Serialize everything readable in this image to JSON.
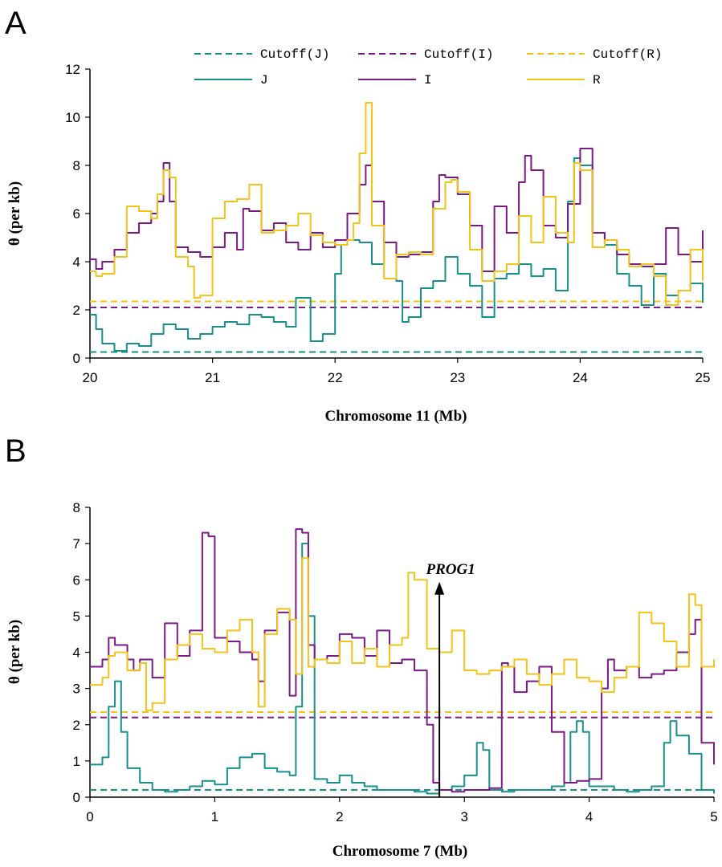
{
  "colors": {
    "J": "#18908a",
    "I": "#7b1a86",
    "R": "#f2c318"
  },
  "chart_data": [
    {
      "type": "line",
      "panel": "A",
      "xlabel": "Chromosome 11 (Mb)",
      "ylabel": "θ (per kb)",
      "xlim": [
        20,
        25
      ],
      "ylim": [
        0,
        12
      ],
      "xticks": [
        20,
        21,
        22,
        23,
        24,
        25
      ],
      "yticks": [
        0,
        2,
        4,
        6,
        8,
        10,
        12
      ],
      "legend": [
        {
          "name": "Cutoff(J)",
          "series": "J",
          "dashed": true
        },
        {
          "name": "Cutoff(I)",
          "series": "I",
          "dashed": true
        },
        {
          "name": "Cutoff(R)",
          "series": "R",
          "dashed": true
        },
        {
          "name": "J",
          "series": "J",
          "dashed": false
        },
        {
          "name": "I",
          "series": "I",
          "dashed": false
        },
        {
          "name": "R",
          "series": "R",
          "dashed": false
        }
      ],
      "cutoffs": {
        "J": 0.25,
        "I": 2.1,
        "R": 2.35
      },
      "series": [
        {
          "key": "J",
          "x": [
            20,
            20.05,
            20.1,
            20.2,
            20.3,
            20.4,
            20.5,
            20.6,
            20.7,
            20.8,
            20.9,
            21,
            21.1,
            21.2,
            21.3,
            21.4,
            21.5,
            21.6,
            21.68,
            21.72,
            21.8,
            21.9,
            22,
            22.05,
            22.1,
            22.2,
            22.3,
            22.4,
            22.5,
            22.55,
            22.6,
            22.7,
            22.8,
            22.9,
            23,
            23.1,
            23.2,
            23.3,
            23.4,
            23.5,
            23.6,
            23.7,
            23.8,
            23.9,
            23.95,
            24,
            24.1,
            24.2,
            24.3,
            24.4,
            24.5,
            24.6,
            24.7,
            24.8,
            24.9,
            25
          ],
          "y": [
            1.8,
            1.2,
            0.6,
            0.3,
            0.6,
            0.5,
            1,
            1.4,
            1.2,
            0.8,
            1,
            1.3,
            1.5,
            1.4,
            1.8,
            1.7,
            1.5,
            1.3,
            2.5,
            2.5,
            0.7,
            1,
            3.5,
            4.7,
            4.9,
            4.8,
            3.9,
            4.8,
            3.2,
            1.5,
            1.7,
            2.9,
            3.2,
            4.2,
            3.5,
            3,
            1.7,
            3.3,
            3.5,
            3.9,
            3.4,
            3.7,
            2.8,
            6.5,
            8.3,
            8,
            5.2,
            4.7,
            3.5,
            3,
            2.2,
            3.5,
            2.6,
            2.8,
            3.1,
            2.3
          ]
        },
        {
          "key": "I",
          "x": [
            20,
            20.05,
            20.1,
            20.2,
            20.3,
            20.4,
            20.5,
            20.55,
            20.6,
            20.65,
            20.7,
            20.8,
            20.9,
            21,
            21.1,
            21.2,
            21.25,
            21.3,
            21.4,
            21.5,
            21.6,
            21.7,
            21.8,
            21.9,
            22,
            22.1,
            22.2,
            22.25,
            22.3,
            22.4,
            22.5,
            22.6,
            22.7,
            22.8,
            22.85,
            22.9,
            23,
            23.1,
            23.2,
            23.3,
            23.4,
            23.5,
            23.55,
            23.6,
            23.7,
            23.8,
            23.9,
            24,
            24.1,
            24.2,
            24.3,
            24.4,
            24.5,
            24.6,
            24.7,
            24.8,
            24.9,
            25
          ],
          "y": [
            4.1,
            3.7,
            4,
            4.5,
            5.2,
            5.6,
            6,
            6.5,
            8.1,
            6.5,
            4.6,
            4.4,
            4.2,
            4.6,
            5.2,
            4.5,
            6.2,
            6.1,
            5.3,
            5.6,
            4.8,
            4.5,
            5.2,
            4.6,
            4.9,
            6,
            7.2,
            8,
            6.5,
            4.8,
            4.2,
            4.3,
            4.4,
            6.5,
            7.6,
            7.5,
            6.8,
            5.5,
            3.6,
            6.3,
            5.2,
            7.3,
            8.4,
            7.8,
            5.5,
            5,
            6.4,
            8.7,
            5.2,
            4.9,
            4.3,
            3.9,
            3.8,
            3.9,
            5.4,
            4.3,
            4,
            5.3
          ]
        },
        {
          "key": "R",
          "x": [
            20,
            20.05,
            20.1,
            20.2,
            20.3,
            20.4,
            20.5,
            20.55,
            20.6,
            20.65,
            20.7,
            20.8,
            20.85,
            20.9,
            21,
            21.1,
            21.2,
            21.3,
            21.4,
            21.5,
            21.6,
            21.7,
            21.8,
            21.9,
            22,
            22.1,
            22.15,
            22.2,
            22.25,
            22.3,
            22.4,
            22.5,
            22.6,
            22.7,
            22.8,
            22.9,
            22.95,
            23,
            23.1,
            23.2,
            23.3,
            23.4,
            23.5,
            23.6,
            23.7,
            23.8,
            23.9,
            23.95,
            24,
            24.1,
            24.2,
            24.3,
            24.4,
            24.5,
            24.6,
            24.7,
            24.8,
            24.9,
            25
          ],
          "y": [
            3.6,
            3.4,
            3.5,
            4.2,
            6.3,
            6.1,
            5.8,
            6.8,
            7.8,
            7.5,
            4.2,
            3.8,
            2.5,
            2.6,
            5.8,
            6.5,
            6.6,
            7.2,
            5.2,
            5.3,
            5.5,
            6,
            5.1,
            4.8,
            4.7,
            4.9,
            5.6,
            8.5,
            10.6,
            5.5,
            3.3,
            4.3,
            4.4,
            4.3,
            6.2,
            7.3,
            7.4,
            6.9,
            4.5,
            3.2,
            3.6,
            3.9,
            5.9,
            4.8,
            6.7,
            5.2,
            4.8,
            8.1,
            7.8,
            4.6,
            4.9,
            4.5,
            3.8,
            3.9,
            3.4,
            2.2,
            2.8,
            4.5,
            3.2
          ]
        }
      ]
    },
    {
      "type": "line",
      "panel": "B",
      "xlabel": "Chromosome 7 (Mb)",
      "ylabel": "θ (per kb)",
      "xlim": [
        0,
        5
      ],
      "ylim": [
        0,
        8
      ],
      "xticks": [
        0,
        1,
        2,
        3,
        4,
        5
      ],
      "yticks": [
        0,
        1,
        2,
        3,
        4,
        5,
        6,
        7,
        8
      ],
      "annotation": {
        "text": "PROG1",
        "x": 2.8,
        "y_from": 0,
        "y_to": 5.9
      },
      "cutoffs": {
        "J": 0.2,
        "I": 2.2,
        "R": 2.35
      },
      "series": [
        {
          "key": "J",
          "x": [
            0,
            0.1,
            0.15,
            0.2,
            0.25,
            0.3,
            0.4,
            0.5,
            0.6,
            0.7,
            0.8,
            0.9,
            1,
            1.1,
            1.2,
            1.3,
            1.35,
            1.4,
            1.5,
            1.6,
            1.65,
            1.7,
            1.75,
            1.8,
            1.9,
            2,
            2.1,
            2.2,
            2.3,
            2.4,
            2.5,
            2.6,
            2.7,
            2.8,
            2.9,
            3,
            3.1,
            3.15,
            3.2,
            3.3,
            3.4,
            3.5,
            3.6,
            3.7,
            3.8,
            3.85,
            3.9,
            3.95,
            4,
            4.1,
            4.2,
            4.3,
            4.4,
            4.5,
            4.6,
            4.65,
            4.7,
            4.8,
            4.9,
            5
          ],
          "y": [
            0.9,
            1.1,
            2.5,
            3.2,
            1.8,
            0.8,
            0.4,
            0.2,
            0.15,
            0.2,
            0.3,
            0.45,
            0.35,
            0.8,
            1.1,
            1.2,
            1.2,
            0.8,
            0.7,
            0.6,
            2.5,
            7,
            5,
            0.5,
            0.4,
            0.6,
            0.4,
            0.3,
            0.2,
            0.2,
            0.2,
            0.15,
            0.1,
            0.2,
            0.3,
            0.6,
            1.5,
            1.3,
            0.2,
            0.15,
            0.2,
            0.2,
            0.2,
            0.3,
            0.4,
            1.8,
            2.1,
            1.8,
            0.3,
            0.3,
            0.2,
            0.15,
            0.2,
            0.3,
            1.5,
            2.1,
            1.7,
            1.2,
            0.2,
            0.1
          ]
        },
        {
          "key": "I",
          "x": [
            0,
            0.1,
            0.15,
            0.2,
            0.3,
            0.35,
            0.4,
            0.5,
            0.6,
            0.7,
            0.8,
            0.9,
            0.95,
            1,
            1.1,
            1.2,
            1.3,
            1.35,
            1.4,
            1.5,
            1.6,
            1.65,
            1.7,
            1.75,
            1.8,
            1.9,
            2,
            2.1,
            2.2,
            2.3,
            2.4,
            2.5,
            2.6,
            2.7,
            2.75,
            2.8,
            2.9,
            3,
            3.1,
            3.2,
            3.3,
            3.35,
            3.4,
            3.5,
            3.6,
            3.7,
            3.8,
            3.9,
            4,
            4.1,
            4.15,
            4.2,
            4.3,
            4.4,
            4.5,
            4.6,
            4.7,
            4.8,
            4.85,
            4.9,
            5
          ],
          "y": [
            3.6,
            3.8,
            4.4,
            4.2,
            3.8,
            3.5,
            3.8,
            3.3,
            4.8,
            3.9,
            4.6,
            7.3,
            7.2,
            4.4,
            4.3,
            4,
            3.8,
            3.2,
            4.6,
            5.1,
            2.8,
            7.4,
            7.3,
            4.2,
            3.8,
            3.9,
            4.5,
            4.4,
            3.9,
            4.6,
            3.7,
            3.8,
            3.5,
            2,
            0.4,
            0.2,
            0.15,
            0.2,
            0.2,
            0.25,
            3.7,
            3.6,
            2.9,
            3.2,
            3.6,
            1.8,
            0.4,
            0.45,
            0.5,
            3,
            3.8,
            3.5,
            3.6,
            3.3,
            3.4,
            3.5,
            4,
            4.5,
            4.9,
            1.5,
            0.9
          ]
        },
        {
          "key": "R",
          "x": [
            0,
            0.1,
            0.15,
            0.2,
            0.3,
            0.4,
            0.45,
            0.5,
            0.6,
            0.7,
            0.8,
            0.9,
            1,
            1.1,
            1.2,
            1.3,
            1.35,
            1.4,
            1.5,
            1.6,
            1.65,
            1.7,
            1.75,
            1.8,
            1.9,
            2,
            2.1,
            2.2,
            2.3,
            2.4,
            2.5,
            2.55,
            2.6,
            2.7,
            2.8,
            2.9,
            3,
            3.1,
            3.2,
            3.3,
            3.4,
            3.5,
            3.6,
            3.7,
            3.8,
            3.9,
            4,
            4.1,
            4.2,
            4.3,
            4.4,
            4.5,
            4.6,
            4.7,
            4.8,
            4.85,
            4.9,
            5
          ],
          "y": [
            3.1,
            3.3,
            3.9,
            4,
            3.5,
            3.7,
            2.4,
            2.6,
            3.8,
            4.2,
            4.5,
            4.1,
            4,
            4.6,
            4.9,
            4,
            2.5,
            4.5,
            5.2,
            4.9,
            3.4,
            6.6,
            3.6,
            3.8,
            3.7,
            4.3,
            3.7,
            4.1,
            3.6,
            4.2,
            4.4,
            6.2,
            6,
            4.1,
            4,
            4.6,
            3.5,
            3.4,
            3.5,
            3.6,
            3.8,
            3.4,
            3.1,
            3.4,
            3.8,
            3.3,
            3.2,
            2.9,
            3.3,
            3.6,
            5.1,
            4.8,
            4.3,
            3.6,
            5.6,
            5.3,
            3.6,
            3.8
          ]
        }
      ]
    }
  ],
  "panels": {
    "A": {
      "letter": "A"
    },
    "B": {
      "letter": "B"
    }
  }
}
